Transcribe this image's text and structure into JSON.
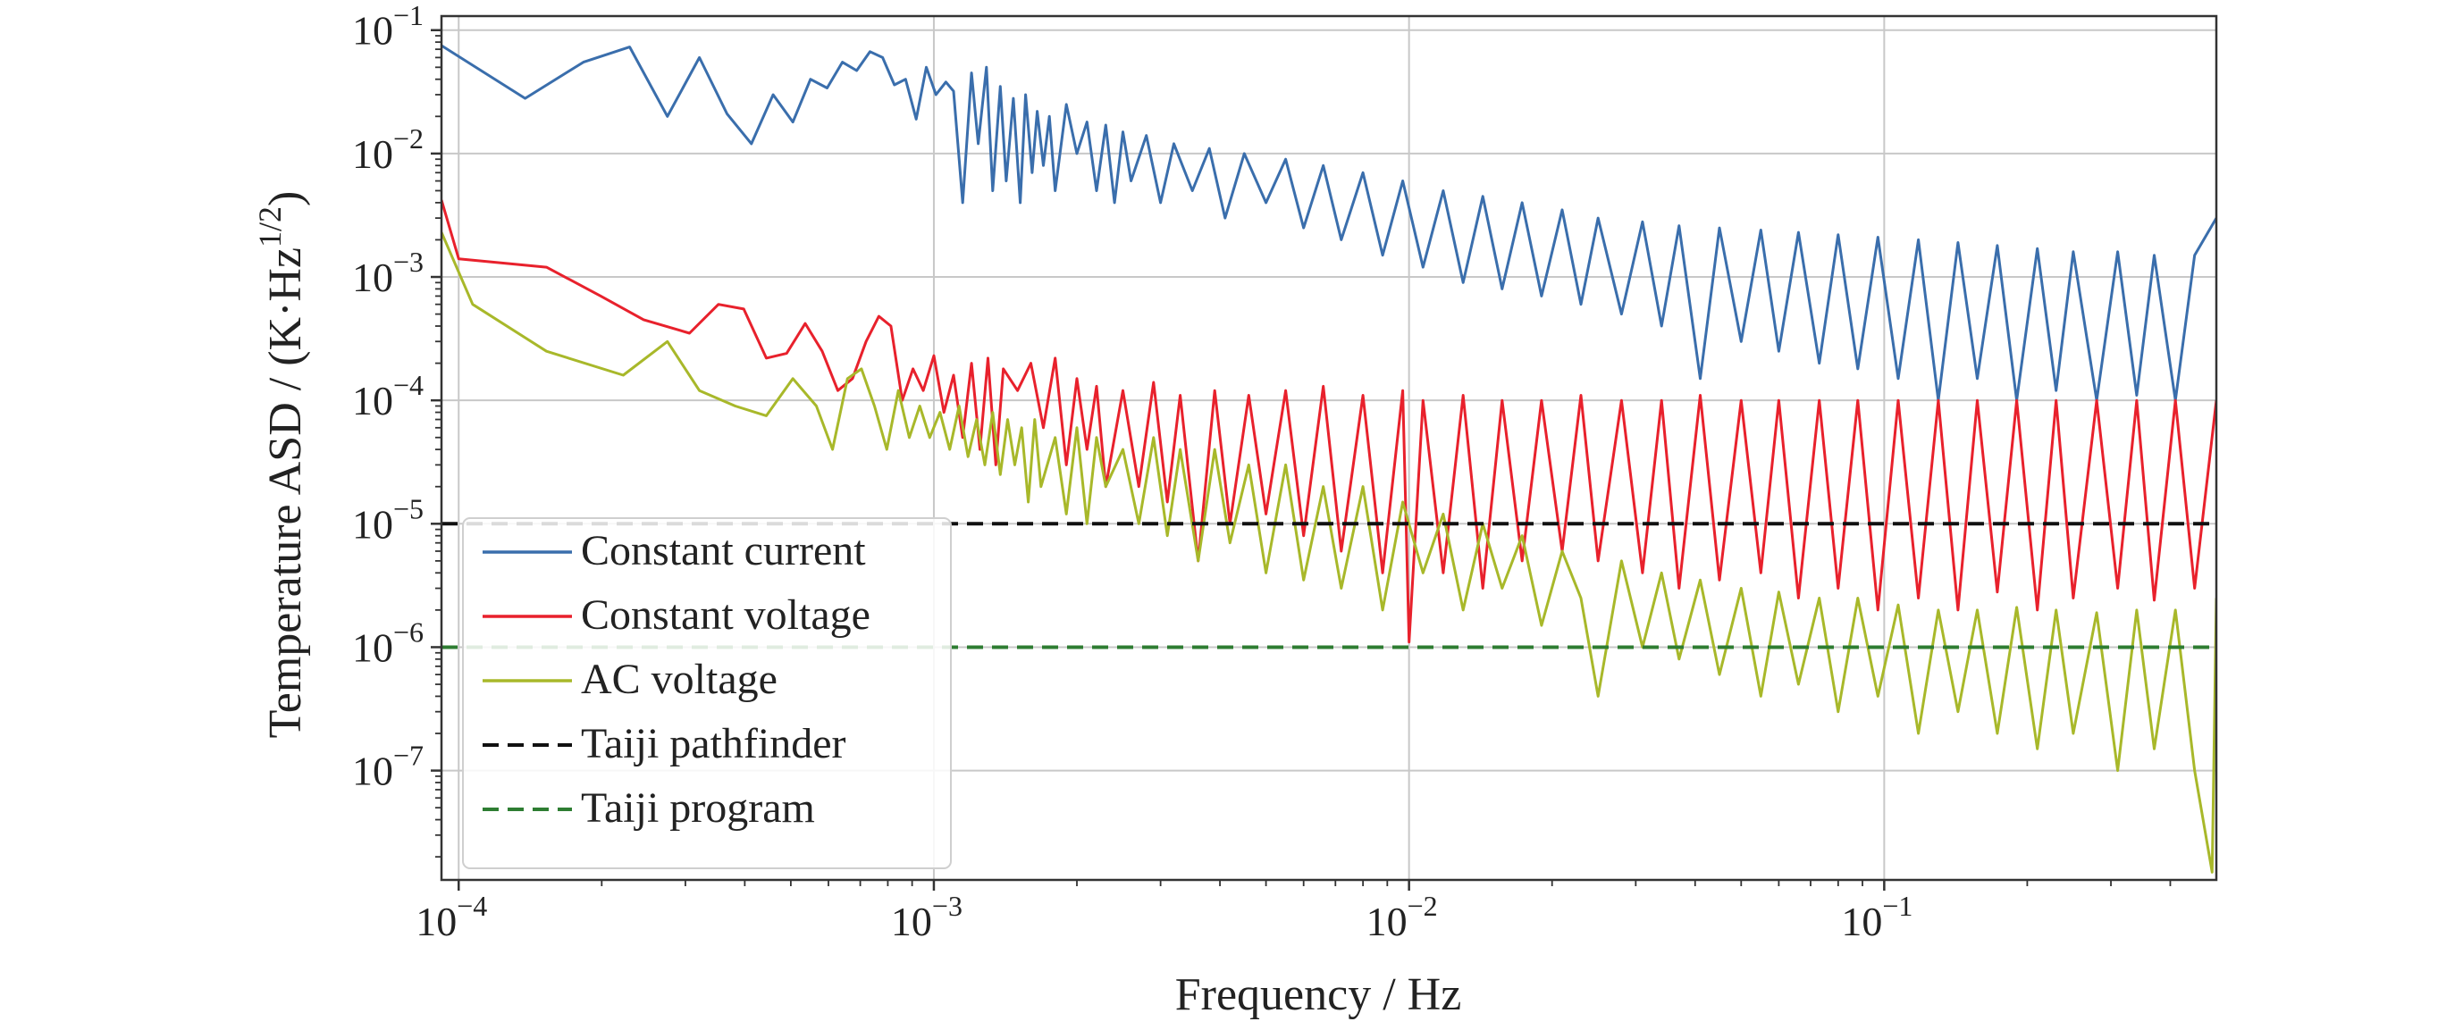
{
  "chart_data": {
    "type": "line",
    "x_scale": "log",
    "y_scale": "log",
    "xlim": [
      9.2e-05,
      0.5
    ],
    "ylim": [
      1.3e-08,
      0.13
    ],
    "xlabel": "Frequency / Hz",
    "ylabel": "Temperature ASD / (K·Hz",
    "ylabel_sup": "1/2",
    "ylabel_close": ")",
    "grid": true,
    "legend_position": "lower-left",
    "x_ticks": [
      {
        "value": 0.0001,
        "label": "10",
        "exp": "−4"
      },
      {
        "value": 0.001,
        "label": "10",
        "exp": "−3"
      },
      {
        "value": 0.01,
        "label": "10",
        "exp": "−2"
      },
      {
        "value": 0.1,
        "label": "10",
        "exp": "−1"
      }
    ],
    "y_ticks": [
      {
        "value": 0.1,
        "label": "10",
        "exp": "−1"
      },
      {
        "value": 0.01,
        "label": "10",
        "exp": "−2"
      },
      {
        "value": 0.001,
        "label": "10",
        "exp": "−3"
      },
      {
        "value": 0.0001,
        "label": "10",
        "exp": "−4"
      },
      {
        "value": 1e-05,
        "label": "10",
        "exp": "−5"
      },
      {
        "value": 1e-06,
        "label": "10",
        "exp": "−6"
      },
      {
        "value": 1e-07,
        "label": "10",
        "exp": "−7"
      }
    ],
    "series": [
      {
        "name": "Constant current",
        "color": "#3a6eac",
        "style": "solid",
        "x": [
          9.2e-05,
          0.000138,
          0.000183,
          0.000229,
          0.000275,
          0.000321,
          0.000367,
          0.000413,
          0.000459,
          0.000505,
          0.00055,
          0.000596,
          0.000642,
          0.000688,
          0.000734,
          0.00078,
          0.000826,
          0.000872,
          0.000918,
          0.000964,
          0.00101,
          0.00106,
          0.0011,
          0.00115,
          0.0012,
          0.00124,
          0.00129,
          0.00133,
          0.00138,
          0.00142,
          0.00147,
          0.00152,
          0.00156,
          0.00161,
          0.00165,
          0.0017,
          0.00175,
          0.0018,
          0.0019,
          0.002,
          0.0021,
          0.0022,
          0.0023,
          0.0024,
          0.0025,
          0.0026,
          0.0028,
          0.003,
          0.0032,
          0.0035,
          0.0038,
          0.0041,
          0.0045,
          0.005,
          0.0055,
          0.006,
          0.0066,
          0.0072,
          0.008,
          0.0088,
          0.0097,
          0.0107,
          0.0118,
          0.013,
          0.0143,
          0.0157,
          0.0173,
          0.019,
          0.021,
          0.023,
          0.025,
          0.028,
          0.031,
          0.034,
          0.037,
          0.041,
          0.045,
          0.05,
          0.055,
          0.06,
          0.066,
          0.073,
          0.08,
          0.088,
          0.097,
          0.107,
          0.118,
          0.13,
          0.143,
          0.157,
          0.173,
          0.19,
          0.21,
          0.23,
          0.25,
          0.28,
          0.31,
          0.34,
          0.37,
          0.41,
          0.45,
          0.5
        ],
        "y": [
          0.075,
          0.028,
          0.055,
          0.073,
          0.02,
          0.06,
          0.021,
          0.012,
          0.03,
          0.018,
          0.04,
          0.034,
          0.055,
          0.047,
          0.067,
          0.06,
          0.036,
          0.04,
          0.019,
          0.05,
          0.03,
          0.038,
          0.032,
          0.004,
          0.045,
          0.012,
          0.05,
          0.005,
          0.035,
          0.006,
          0.028,
          0.004,
          0.03,
          0.007,
          0.022,
          0.008,
          0.02,
          0.005,
          0.025,
          0.01,
          0.018,
          0.005,
          0.017,
          0.004,
          0.015,
          0.006,
          0.014,
          0.004,
          0.012,
          0.005,
          0.011,
          0.003,
          0.01,
          0.004,
          0.009,
          0.0025,
          0.008,
          0.002,
          0.007,
          0.0015,
          0.006,
          0.0012,
          0.005,
          0.0009,
          0.0045,
          0.0008,
          0.004,
          0.0007,
          0.0035,
          0.0006,
          0.003,
          0.0005,
          0.0028,
          0.0004,
          0.0026,
          0.00015,
          0.0025,
          0.0003,
          0.0024,
          0.00025,
          0.0023,
          0.0002,
          0.0022,
          0.00018,
          0.0021,
          0.00015,
          0.002,
          0.0001,
          0.0019,
          0.00015,
          0.0018,
          0.0001,
          0.0017,
          0.00012,
          0.0016,
          0.0001,
          0.0016,
          0.00011,
          0.0015,
          0.0001,
          0.0015,
          0.003
        ]
      },
      {
        "name": "Constant voltage",
        "color": "#e8212c",
        "style": "solid",
        "x": [
          9.2e-05,
          0.0001,
          0.000153,
          0.000199,
          0.000245,
          0.000306,
          0.000352,
          0.000398,
          0.000444,
          0.00049,
          0.000536,
          0.000582,
          0.000628,
          0.000674,
          0.00072,
          0.000766,
          0.000812,
          0.000858,
          0.000904,
          0.00095,
          0.001,
          0.00105,
          0.0011,
          0.00115,
          0.0012,
          0.00125,
          0.0013,
          0.00135,
          0.0014,
          0.0015,
          0.0016,
          0.0017,
          0.0018,
          0.0019,
          0.002,
          0.0021,
          0.0022,
          0.0023,
          0.0025,
          0.0027,
          0.0029,
          0.0031,
          0.0033,
          0.0036,
          0.0039,
          0.0042,
          0.0046,
          0.005,
          0.0055,
          0.006,
          0.0066,
          0.0072,
          0.008,
          0.0088,
          0.0097,
          0.01,
          0.0107,
          0.0118,
          0.013,
          0.0143,
          0.0157,
          0.0173,
          0.019,
          0.021,
          0.023,
          0.025,
          0.028,
          0.031,
          0.034,
          0.037,
          0.041,
          0.045,
          0.05,
          0.055,
          0.06,
          0.066,
          0.073,
          0.08,
          0.088,
          0.097,
          0.107,
          0.118,
          0.13,
          0.143,
          0.157,
          0.173,
          0.19,
          0.21,
          0.23,
          0.25,
          0.28,
          0.31,
          0.34,
          0.37,
          0.41,
          0.45,
          0.5
        ],
        "y": [
          0.0042,
          0.0014,
          0.0012,
          0.0007,
          0.00045,
          0.00035,
          0.0006,
          0.00055,
          0.00022,
          0.00024,
          0.00042,
          0.00025,
          0.00012,
          0.00015,
          0.0003,
          0.00048,
          0.0004,
          0.0001,
          0.00018,
          0.00012,
          0.00023,
          8e-05,
          0.00016,
          5e-05,
          0.0002,
          4e-05,
          0.00022,
          3e-05,
          0.00018,
          0.00012,
          0.0002,
          6e-05,
          0.00022,
          3e-05,
          0.00015,
          4e-05,
          0.00013,
          2e-05,
          0.00012,
          2e-05,
          0.00014,
          1.5e-05,
          0.00011,
          5e-06,
          0.00012,
          1e-05,
          0.00011,
          1.2e-05,
          0.00012,
          8e-06,
          0.00013,
          6e-06,
          0.00011,
          4e-06,
          0.00012,
          1.1e-06,
          0.0001,
          4e-06,
          0.00011,
          3e-06,
          0.0001,
          5e-06,
          0.0001,
          6e-06,
          0.00011,
          5e-06,
          0.0001,
          4e-06,
          0.0001,
          3e-06,
          0.00011,
          3.5e-06,
          0.0001,
          4e-06,
          0.0001,
          2.5e-06,
          0.0001,
          3e-06,
          0.0001,
          2e-06,
          0.0001,
          2.5e-06,
          0.0001,
          2e-06,
          0.0001,
          2.8e-06,
          0.0001,
          2e-06,
          0.0001,
          2.5e-06,
          0.0001,
          3e-06,
          0.0001,
          2.4e-06,
          0.0001,
          3e-06,
          0.0001
        ]
      },
      {
        "name": "AC voltage",
        "color": "#a8b82a",
        "style": "solid",
        "x": [
          9.2e-05,
          0.000107,
          0.000153,
          0.000222,
          0.000275,
          0.000321,
          0.000382,
          0.000444,
          0.000505,
          0.000566,
          0.000612,
          0.000658,
          0.000704,
          0.00075,
          0.000796,
          0.000842,
          0.000888,
          0.000934,
          0.00098,
          0.00103,
          0.00108,
          0.00113,
          0.00118,
          0.00123,
          0.00128,
          0.00133,
          0.00138,
          0.00143,
          0.00148,
          0.00153,
          0.00158,
          0.00163,
          0.00168,
          0.0018,
          0.0019,
          0.002,
          0.0021,
          0.0022,
          0.0023,
          0.0025,
          0.0027,
          0.0029,
          0.0031,
          0.0033,
          0.0036,
          0.0039,
          0.0042,
          0.0046,
          0.005,
          0.0055,
          0.006,
          0.0066,
          0.0072,
          0.008,
          0.0088,
          0.0097,
          0.0107,
          0.0118,
          0.013,
          0.0143,
          0.0157,
          0.0173,
          0.019,
          0.021,
          0.023,
          0.025,
          0.028,
          0.031,
          0.034,
          0.037,
          0.041,
          0.045,
          0.05,
          0.055,
          0.06,
          0.066,
          0.073,
          0.08,
          0.088,
          0.097,
          0.107,
          0.118,
          0.13,
          0.143,
          0.157,
          0.173,
          0.19,
          0.21,
          0.23,
          0.25,
          0.28,
          0.31,
          0.34,
          0.37,
          0.41,
          0.45,
          0.49,
          0.5
        ],
        "y": [
          0.0023,
          0.0006,
          0.00025,
          0.00016,
          0.0003,
          0.00012,
          9e-05,
          7.5e-05,
          0.00015,
          9e-05,
          4e-05,
          0.00015,
          0.00018,
          9e-05,
          4e-05,
          0.00012,
          5e-05,
          9e-05,
          5e-05,
          8e-05,
          4e-05,
          9e-05,
          3.5e-05,
          7e-05,
          3e-05,
          8e-05,
          2.5e-05,
          7e-05,
          3e-05,
          6e-05,
          1.5e-05,
          7e-05,
          2e-05,
          5e-05,
          1.2e-05,
          6e-05,
          1e-05,
          5e-05,
          2e-05,
          4e-05,
          1e-05,
          5e-05,
          8e-06,
          4e-05,
          5e-06,
          4e-05,
          7e-06,
          3e-05,
          4e-06,
          3e-05,
          3.5e-06,
          2e-05,
          3e-06,
          2e-05,
          2e-06,
          1.5e-05,
          4e-06,
          1.2e-05,
          2e-06,
          1e-05,
          3e-06,
          8e-06,
          1.5e-06,
          6e-06,
          2.5e-06,
          4e-07,
          5e-06,
          1e-06,
          4e-06,
          8e-07,
          3.5e-06,
          6e-07,
          3e-06,
          4e-07,
          2.8e-06,
          5e-07,
          2.5e-06,
          3e-07,
          2.5e-06,
          4e-07,
          2.2e-06,
          2e-07,
          2e-06,
          3e-07,
          2e-06,
          2e-07,
          2.1e-06,
          1.5e-07,
          2e-06,
          2e-07,
          1.9e-06,
          1e-07,
          2e-06,
          1.5e-07,
          2e-06,
          1e-07,
          1.5e-08,
          2.5e-06
        ]
      },
      {
        "name": "Taiji pathfinder",
        "color": "#111111",
        "style": "dashed",
        "x": [
          9.2e-05,
          0.5
        ],
        "y": [
          1e-05,
          1e-05
        ]
      },
      {
        "name": "Taiji program",
        "color": "#2e7d32",
        "style": "dashed",
        "x": [
          9.2e-05,
          0.5
        ],
        "y": [
          1e-06,
          1e-06
        ]
      }
    ]
  }
}
